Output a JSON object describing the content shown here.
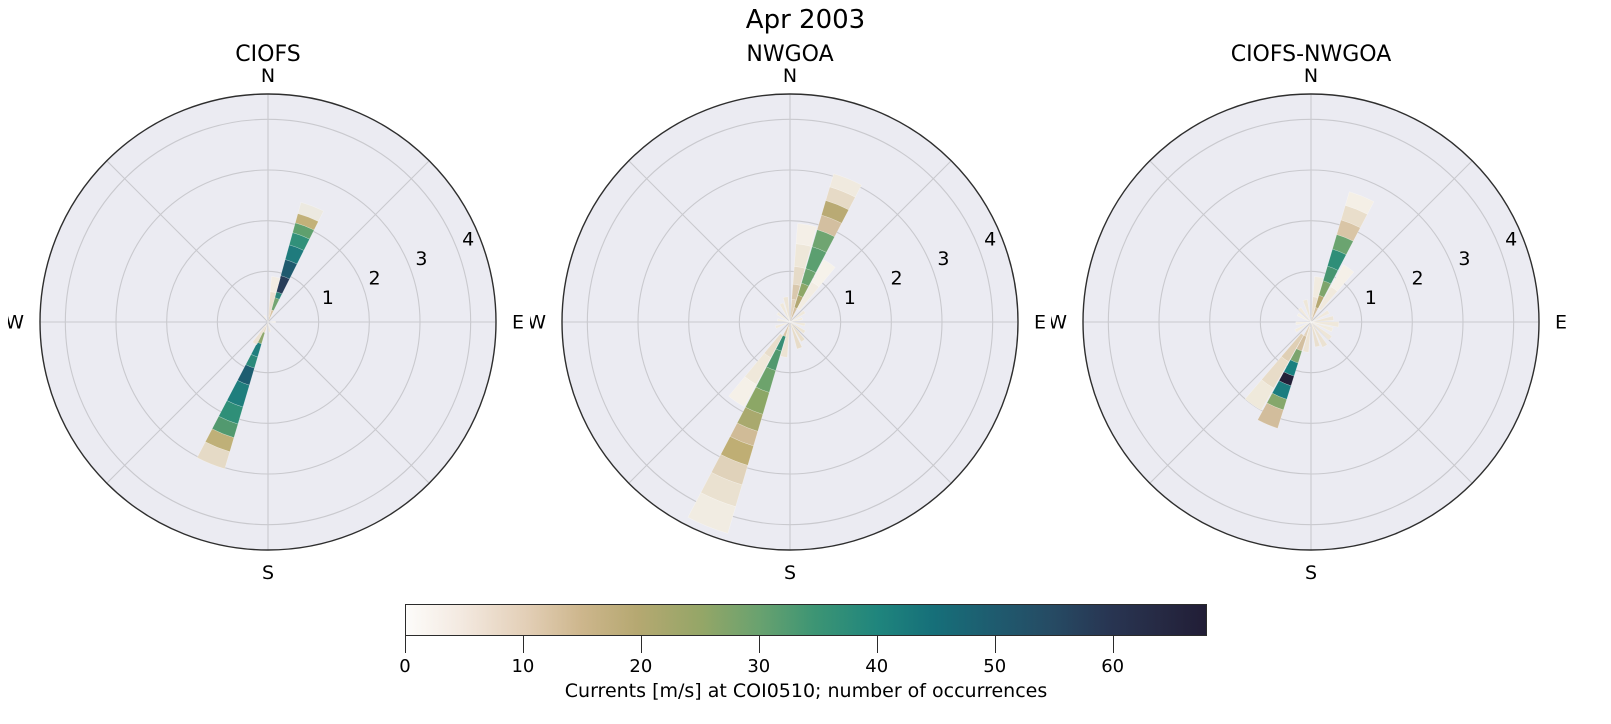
{
  "figure": {
    "suptitle": "Apr 2003"
  },
  "style": {
    "axes_background": "#ebebf2",
    "grid_color": "#c9c9ce",
    "spine_color": "#2e2e2e",
    "text_color": "#000000",
    "cell_edge": "#ffffff"
  },
  "chart_data": {
    "type": "heatmap",
    "layout": "three polar (wind-rose style) occurrence histograms sharing one horizontal colorbar; radius = current speed [m/s], angle = direction, color = number of occurrences",
    "compass_labels": [
      "N",
      "E",
      "S",
      "W"
    ],
    "radial_axis": {
      "tick_values": [
        1,
        2,
        3,
        4
      ],
      "rmax": 4.5,
      "tick_azimuth_deg": 67.5
    },
    "angular_gridlines_every_deg": 45,
    "colorbar": {
      "label": "Currents [m/s] at COI0510; number of occurrences",
      "ticks": [
        0,
        10,
        20,
        30,
        40,
        50,
        60
      ],
      "vmin": 0,
      "vmax": 68,
      "stops": [
        [
          0.0,
          "#fdfcfa"
        ],
        [
          0.07,
          "#f3e9e0"
        ],
        [
          0.15,
          "#e3cfb7"
        ],
        [
          0.22,
          "#cdb68c"
        ],
        [
          0.29,
          "#b5a871"
        ],
        [
          0.37,
          "#94a667"
        ],
        [
          0.44,
          "#6aa26f"
        ],
        [
          0.51,
          "#3d9574"
        ],
        [
          0.59,
          "#1f857d"
        ],
        [
          0.66,
          "#166f79"
        ],
        [
          0.74,
          "#1f5a6e"
        ],
        [
          0.81,
          "#264a63"
        ],
        [
          0.88,
          "#283552"
        ],
        [
          0.94,
          "#262a44"
        ],
        [
          1.0,
          "#211d36"
        ]
      ]
    },
    "subplots": [
      {
        "title": "CIOFS",
        "columns": [
          {
            "az": 21,
            "segments": [
              [
                0.0,
                0.25,
                13,
                "#d8c3a3"
              ],
              [
                0.25,
                0.5,
                30,
                "#74a573"
              ],
              [
                0.5,
                0.62,
                41,
                "#2b8579"
              ],
              [
                0.62,
                0.95,
                61,
                "#283d59"
              ],
              [
                0.95,
                1.28,
                53,
                "#1f5a6e"
              ],
              [
                1.28,
                1.58,
                45,
                "#1f7b7d"
              ],
              [
                1.58,
                1.83,
                37,
                "#31907a"
              ],
              [
                1.83,
                2.03,
                31,
                "#5fa06e"
              ],
              [
                2.03,
                2.22,
                20,
                "#c2b179"
              ],
              [
                2.22,
                2.45,
                3,
                "#ece9e0"
              ]
            ]
          },
          {
            "az": 10,
            "segments": [
              [
                0.1,
                0.6,
                6,
                "#eadfd0"
              ],
              [
                0.6,
                0.9,
                3,
                "#f2ece3"
              ]
            ]
          },
          {
            "az": 202,
            "segments": [
              [
                0.0,
                0.22,
                8,
                "#e6d8c5"
              ],
              [
                0.22,
                0.45,
                27,
                "#8fa76c"
              ],
              [
                0.45,
                0.72,
                44,
                "#1f7f7e"
              ],
              [
                0.72,
                0.95,
                40,
                "#2b897a"
              ],
              [
                0.95,
                1.3,
                52,
                "#1d5d70"
              ],
              [
                1.3,
                1.75,
                44,
                "#1f7e7d"
              ],
              [
                1.75,
                2.1,
                38,
                "#2f8f78"
              ],
              [
                2.1,
                2.38,
                33,
                "#52996f"
              ],
              [
                2.38,
                2.67,
                20,
                "#bfb078"
              ],
              [
                2.67,
                3.02,
                8,
                "#e5dac6"
              ]
            ]
          },
          {
            "az": 212,
            "segments": [
              [
                0.1,
                0.5,
                5,
                "#ece2d4"
              ]
            ]
          },
          {
            "az": 90,
            "segments": [
              [
                0.0,
                0.15,
                4,
                "#f0e9de"
              ]
            ]
          },
          {
            "az": 170,
            "segments": [
              [
                0.0,
                0.2,
                5,
                "#eee6d9"
              ]
            ]
          },
          {
            "az": 330,
            "segments": [
              [
                0.0,
                0.15,
                3,
                "#f2ece2"
              ]
            ]
          }
        ]
      },
      {
        "title": "NWGOA",
        "columns": [
          {
            "az": 22,
            "segments": [
              [
                0.0,
                0.3,
                14,
                "#d3bf9f"
              ],
              [
                0.3,
                0.55,
                22,
                "#b2a772"
              ],
              [
                0.55,
                0.8,
                26,
                "#8ea767"
              ],
              [
                0.8,
                1.1,
                30,
                "#6ba46f"
              ],
              [
                1.1,
                1.55,
                32,
                "#5b9f70"
              ],
              [
                1.55,
                1.9,
                30,
                "#6fa571"
              ],
              [
                1.9,
                2.2,
                14,
                "#d3bfa0"
              ],
              [
                2.2,
                2.5,
                21,
                "#b9aa74"
              ],
              [
                2.5,
                2.78,
                8,
                "#e6dac6"
              ],
              [
                2.78,
                3.05,
                4,
                "#f0eadf"
              ]
            ]
          },
          {
            "az": 10,
            "segments": [
              [
                0.1,
                0.45,
                10,
                "#e3d4bd"
              ],
              [
                0.45,
                0.75,
                12,
                "#d9c8ad"
              ],
              [
                0.75,
                1.1,
                8,
                "#e6dbc8"
              ],
              [
                1.1,
                1.55,
                5,
                "#eee7d9"
              ],
              [
                1.55,
                1.95,
                2,
                "#f4efe7"
              ]
            ]
          },
          {
            "az": 34,
            "segments": [
              [
                0.3,
                0.9,
                3,
                "#f2ece2"
              ],
              [
                0.9,
                1.4,
                2,
                "#f6f2ea"
              ]
            ]
          },
          {
            "az": 202,
            "segments": [
              [
                0.0,
                0.3,
                13,
                "#d9c6a8"
              ],
              [
                0.3,
                0.6,
                38,
                "#388e74"
              ],
              [
                0.6,
                1.0,
                34,
                "#51996f"
              ],
              [
                1.0,
                1.45,
                30,
                "#6da36c"
              ],
              [
                1.45,
                1.9,
                26,
                "#8ca766"
              ],
              [
                1.9,
                2.25,
                23,
                "#a9a96e"
              ],
              [
                2.25,
                2.55,
                15,
                "#d0bb97"
              ],
              [
                2.55,
                2.95,
                20,
                "#bfae74"
              ],
              [
                2.95,
                3.35,
                10,
                "#e0d2ba"
              ],
              [
                3.35,
                3.8,
                6,
                "#eae1d0"
              ],
              [
                3.8,
                4.35,
                3,
                "#f1ece2"
              ]
            ]
          },
          {
            "az": 214,
            "segments": [
              [
                0.3,
                0.8,
                7,
                "#e8ddcb"
              ],
              [
                0.8,
                1.4,
                5,
                "#efe8da"
              ],
              [
                1.4,
                1.9,
                2,
                "#f5f0e8"
              ]
            ]
          },
          {
            "az": 190,
            "segments": [
              [
                0.1,
                0.7,
                6,
                "#ece3d3"
              ]
            ]
          },
          {
            "az": 55,
            "segments": [
              [
                0.0,
                0.35,
                5,
                "#efe8db"
              ]
            ]
          },
          {
            "az": 75,
            "segments": [
              [
                0.0,
                0.25,
                4,
                "#f2ecdf"
              ]
            ]
          },
          {
            "az": 100,
            "segments": [
              [
                0.0,
                0.3,
                4,
                "#f0e9dc"
              ]
            ]
          },
          {
            "az": 125,
            "segments": [
              [
                0.0,
                0.35,
                5,
                "#ece4d4"
              ]
            ]
          },
          {
            "az": 145,
            "segments": [
              [
                0.0,
                0.45,
                6,
                "#e9dfcd"
              ]
            ]
          },
          {
            "az": 160,
            "segments": [
              [
                0.05,
                0.55,
                7,
                "#e7dcc9"
              ]
            ]
          },
          {
            "az": 250,
            "segments": [
              [
                0.0,
                0.3,
                4,
                "#f1eadd"
              ]
            ]
          },
          {
            "az": 280,
            "segments": [
              [
                0.0,
                0.25,
                3,
                "#f3eee3"
              ]
            ]
          },
          {
            "az": 305,
            "segments": [
              [
                0.0,
                0.3,
                3,
                "#f2ece0"
              ]
            ]
          },
          {
            "az": 335,
            "segments": [
              [
                0.0,
                0.4,
                4,
                "#efe8da"
              ]
            ]
          },
          {
            "az": 350,
            "segments": [
              [
                0.0,
                0.5,
                5,
                "#ede5d6"
              ]
            ]
          }
        ]
      },
      {
        "title": "CIOFS-NWGOA",
        "columns": [
          {
            "az": 22,
            "segments": [
              [
                0.0,
                0.3,
                13,
                "#d6c1a1"
              ],
              [
                0.3,
                0.55,
                21,
                "#b6a871"
              ],
              [
                0.55,
                0.85,
                28,
                "#7ea56b"
              ],
              [
                0.85,
                1.15,
                35,
                "#479571"
              ],
              [
                1.15,
                1.5,
                38,
                "#2f8e78"
              ],
              [
                1.5,
                1.8,
                30,
                "#6ba470"
              ],
              [
                1.8,
                2.1,
                12,
                "#d9c5a6"
              ],
              [
                2.1,
                2.4,
                7,
                "#e9decb"
              ],
              [
                2.4,
                2.68,
                2,
                "#f4efe6"
              ]
            ]
          },
          {
            "az": 35,
            "segments": [
              [
                0.3,
                0.8,
                4,
                "#f0e9dd"
              ],
              [
                0.8,
                1.3,
                2,
                "#f5f0e8"
              ]
            ]
          },
          {
            "az": 10,
            "segments": [
              [
                0.1,
                0.5,
                6,
                "#ebe1d2"
              ],
              [
                0.5,
                0.9,
                3,
                "#f1ebe0"
              ]
            ]
          },
          {
            "az": 203,
            "segments": [
              [
                0.0,
                0.3,
                10,
                "#e2d3bd"
              ],
              [
                0.3,
                0.6,
                14,
                "#d3bf9f"
              ],
              [
                0.6,
                0.85,
                28,
                "#7ca56e"
              ],
              [
                0.85,
                1.12,
                45,
                "#18807f"
              ],
              [
                1.12,
                1.32,
                67,
                "#232038"
              ],
              [
                1.32,
                1.6,
                45,
                "#1b7d7f"
              ],
              [
                1.6,
                1.82,
                27,
                "#85a76b"
              ],
              [
                1.82,
                2.2,
                14,
                "#d2bd9c"
              ]
            ]
          },
          {
            "az": 215,
            "segments": [
              [
                0.3,
                0.9,
                11,
                "#dfcfb5"
              ],
              [
                0.9,
                1.5,
                8,
                "#e8dcc8"
              ],
              [
                1.5,
                2.0,
                4,
                "#efe9db"
              ]
            ]
          },
          {
            "az": 190,
            "segments": [
              [
                0.1,
                0.6,
                6,
                "#ede4d5"
              ]
            ]
          },
          {
            "az": 60,
            "segments": [
              [
                0.0,
                0.4,
                4,
                "#f0e9dd"
              ]
            ]
          },
          {
            "az": 80,
            "segments": [
              [
                0.0,
                0.45,
                5,
                "#ede5d7"
              ]
            ]
          },
          {
            "az": 95,
            "segments": [
              [
                0.0,
                0.55,
                5,
                "#efe8db"
              ]
            ]
          },
          {
            "az": 110,
            "segments": [
              [
                0.0,
                0.45,
                4,
                "#f1ebdf"
              ]
            ]
          },
          {
            "az": 130,
            "segments": [
              [
                0.0,
                0.5,
                5,
                "#eee6d8"
              ]
            ]
          },
          {
            "az": 150,
            "segments": [
              [
                0.0,
                0.55,
                6,
                "#ebe2d2"
              ]
            ]
          },
          {
            "az": 165,
            "segments": [
              [
                0.0,
                0.5,
                6,
                "#e9dfcf"
              ]
            ]
          },
          {
            "az": 240,
            "segments": [
              [
                0.0,
                0.35,
                3,
                "#f2ecdf"
              ]
            ]
          },
          {
            "az": 265,
            "segments": [
              [
                0.0,
                0.3,
                3,
                "#f3eee4"
              ]
            ]
          },
          {
            "az": 300,
            "segments": [
              [
                0.0,
                0.3,
                2,
                "#f4efe5"
              ]
            ]
          },
          {
            "az": 320,
            "segments": [
              [
                0.0,
                0.35,
                3,
                "#f1eadd"
              ]
            ]
          },
          {
            "az": 345,
            "segments": [
              [
                0.0,
                0.45,
                5,
                "#eee7d9"
              ]
            ]
          }
        ]
      }
    ]
  }
}
